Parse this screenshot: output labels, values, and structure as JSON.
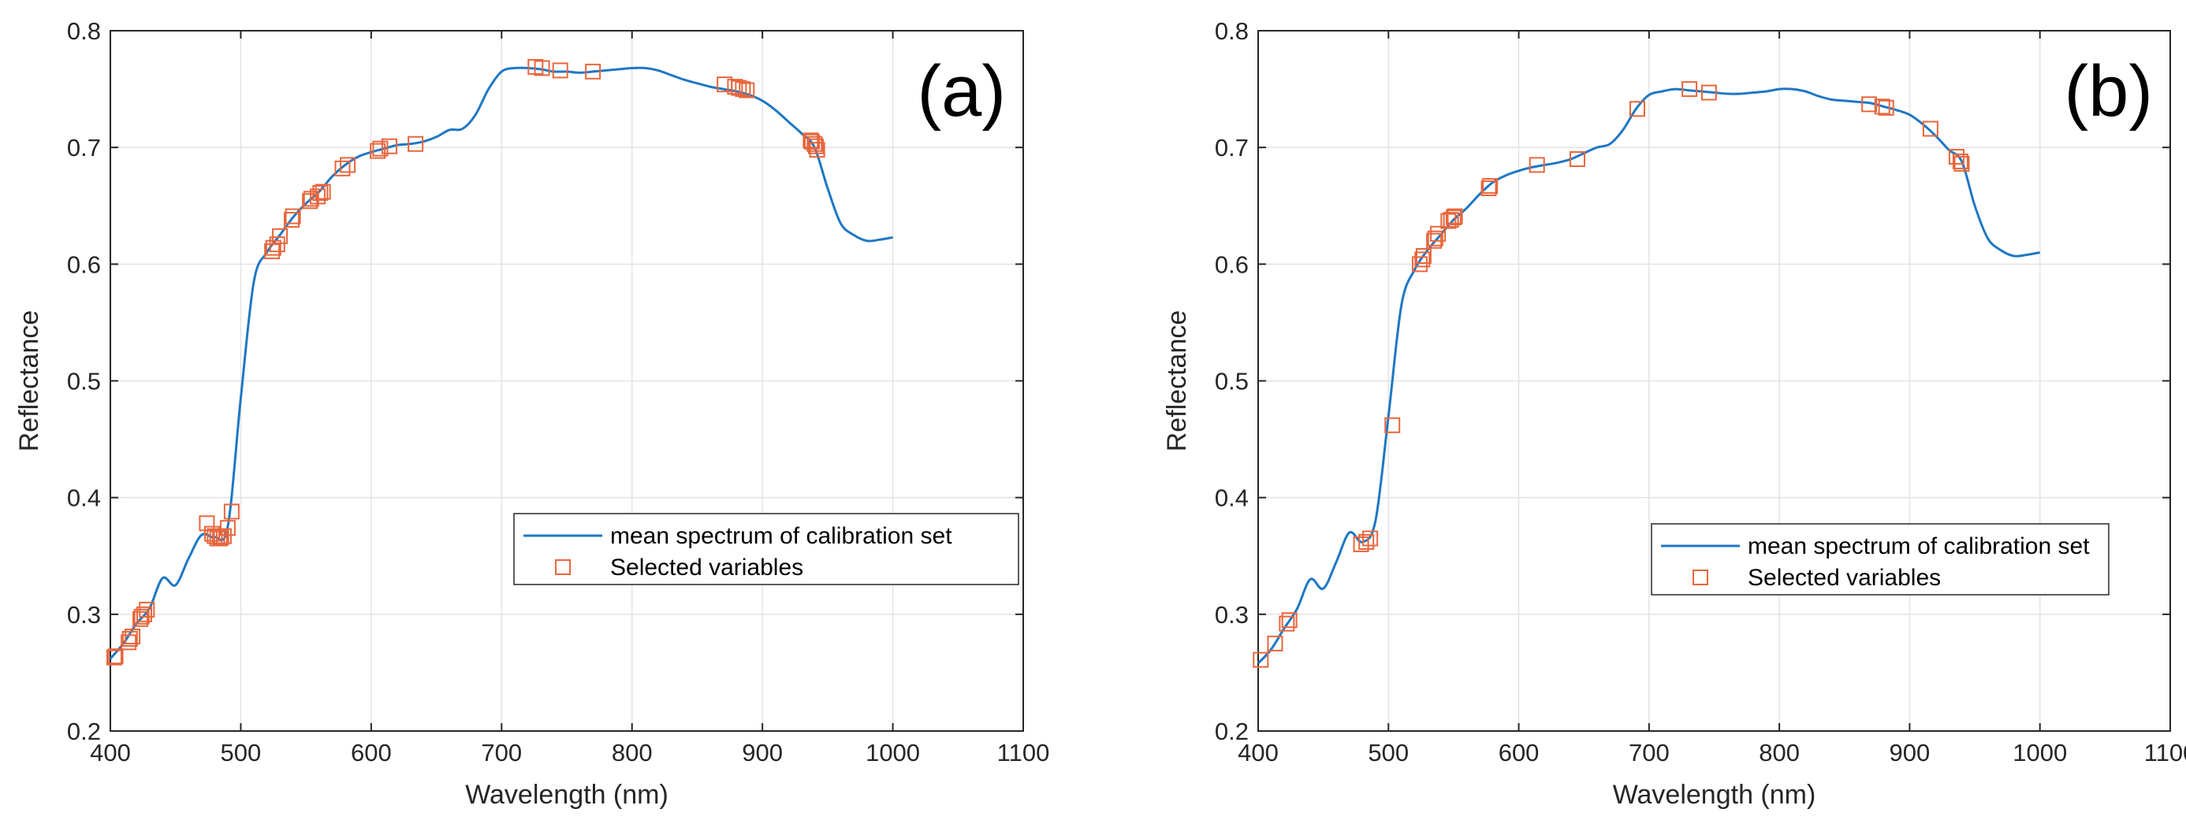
{
  "chart_data": [
    {
      "type": "line",
      "panel_label": "(a)",
      "xlabel": "Wavelength (nm)",
      "ylabel": "Reflectance",
      "xlim": [
        400,
        1100
      ],
      "ylim": [
        0.2,
        0.8
      ],
      "xticks": [
        "400",
        "500",
        "600",
        "700",
        "800",
        "900",
        "1000",
        "1100"
      ],
      "yticks": [
        "0.2",
        "0.3",
        "0.4",
        "0.5",
        "0.6",
        "0.7",
        "0.8"
      ],
      "grid": true,
      "legend_position": "bottom-right",
      "series": [
        {
          "name": "mean spectrum of calibration set",
          "style": "line",
          "color": "#1f77c4",
          "x": [
            400,
            410,
            420,
            430,
            440,
            450,
            460,
            470,
            480,
            490,
            500,
            510,
            520,
            530,
            540,
            550,
            560,
            570,
            580,
            590,
            600,
            610,
            620,
            630,
            640,
            650,
            660,
            670,
            680,
            690,
            700,
            710,
            720,
            730,
            740,
            750,
            760,
            770,
            780,
            790,
            800,
            810,
            820,
            830,
            840,
            850,
            860,
            870,
            880,
            890,
            900,
            910,
            920,
            930,
            940,
            950,
            960,
            970,
            980,
            990,
            1000
          ],
          "y": [
            0.262,
            0.275,
            0.292,
            0.305,
            0.331,
            0.325,
            0.348,
            0.368,
            0.366,
            0.375,
            0.485,
            0.585,
            0.61,
            0.625,
            0.64,
            0.652,
            0.662,
            0.675,
            0.685,
            0.692,
            0.696,
            0.699,
            0.702,
            0.703,
            0.705,
            0.709,
            0.715,
            0.716,
            0.728,
            0.75,
            0.765,
            0.768,
            0.768,
            0.767,
            0.765,
            0.765,
            0.764,
            0.765,
            0.766,
            0.767,
            0.768,
            0.768,
            0.766,
            0.762,
            0.758,
            0.755,
            0.752,
            0.75,
            0.748,
            0.745,
            0.74,
            0.732,
            0.722,
            0.712,
            0.7,
            0.665,
            0.635,
            0.625,
            0.62,
            0.621,
            0.623
          ]
        },
        {
          "name": "Selected variables",
          "style": "marker",
          "color": "#e8663d",
          "x": [
            403,
            404,
            414,
            415,
            417,
            423,
            424,
            426,
            428,
            474,
            478,
            480,
            482,
            484,
            485,
            487,
            490,
            493,
            524,
            525,
            528,
            530,
            539,
            540,
            553,
            554,
            559,
            561,
            563,
            578,
            582,
            605,
            607,
            614,
            634,
            726,
            731,
            745,
            770,
            871,
            879,
            882,
            885,
            888,
            937,
            938,
            940,
            941,
            942
          ],
          "y": [
            0.263,
            0.264,
            0.276,
            0.279,
            0.281,
            0.296,
            0.298,
            0.3,
            0.304,
            0.378,
            0.369,
            0.367,
            0.365,
            0.365,
            0.366,
            0.367,
            0.374,
            0.388,
            0.611,
            0.614,
            0.617,
            0.624,
            0.638,
            0.641,
            0.654,
            0.656,
            0.658,
            0.661,
            0.662,
            0.682,
            0.685,
            0.697,
            0.699,
            0.701,
            0.703,
            0.769,
            0.768,
            0.766,
            0.765,
            0.754,
            0.752,
            0.751,
            0.75,
            0.749,
            0.706,
            0.705,
            0.703,
            0.701,
            0.698
          ]
        }
      ]
    },
    {
      "type": "line",
      "panel_label": "(b)",
      "xlabel": "Wavelength (nm)",
      "ylabel": "Reflectance",
      "xlim": [
        400,
        1100
      ],
      "ylim": [
        0.2,
        0.8
      ],
      "xticks": [
        "400",
        "500",
        "600",
        "700",
        "800",
        "900",
        "1000",
        "1100"
      ],
      "yticks": [
        "0.2",
        "0.3",
        "0.4",
        "0.5",
        "0.6",
        "0.7",
        "0.8"
      ],
      "grid": true,
      "legend_position": "bottom-right",
      "series": [
        {
          "name": "mean spectrum of calibration set",
          "style": "line",
          "color": "#1f77c4",
          "x": [
            400,
            410,
            420,
            430,
            440,
            450,
            460,
            470,
            480,
            490,
            500,
            510,
            520,
            530,
            540,
            550,
            560,
            570,
            580,
            590,
            600,
            610,
            620,
            630,
            640,
            650,
            660,
            670,
            680,
            690,
            700,
            710,
            720,
            730,
            740,
            750,
            760,
            770,
            780,
            790,
            800,
            810,
            820,
            830,
            840,
            850,
            860,
            870,
            880,
            890,
            900,
            910,
            920,
            930,
            940,
            950,
            960,
            970,
            980,
            990,
            1000
          ],
          "y": [
            0.258,
            0.27,
            0.288,
            0.305,
            0.33,
            0.322,
            0.345,
            0.37,
            0.362,
            0.38,
            0.47,
            0.565,
            0.595,
            0.612,
            0.625,
            0.638,
            0.648,
            0.66,
            0.67,
            0.676,
            0.68,
            0.683,
            0.685,
            0.687,
            0.69,
            0.695,
            0.7,
            0.703,
            0.715,
            0.733,
            0.745,
            0.748,
            0.75,
            0.749,
            0.748,
            0.747,
            0.746,
            0.746,
            0.747,
            0.748,
            0.75,
            0.75,
            0.748,
            0.744,
            0.741,
            0.74,
            0.739,
            0.738,
            0.735,
            0.732,
            0.728,
            0.72,
            0.71,
            0.698,
            0.688,
            0.65,
            0.622,
            0.612,
            0.607,
            0.608,
            0.61
          ]
        },
        {
          "name": "Selected variables",
          "style": "marker",
          "color": "#e8663d",
          "x": [
            402,
            413,
            422,
            424,
            479,
            483,
            486,
            503,
            524,
            526,
            527,
            535,
            536,
            538,
            546,
            548,
            550,
            551,
            577,
            578,
            614,
            645,
            691,
            731,
            746,
            869,
            879,
            882,
            916,
            936,
            939,
            940
          ],
          "y": [
            0.261,
            0.275,
            0.292,
            0.295,
            0.36,
            0.362,
            0.365,
            0.462,
            0.6,
            0.604,
            0.607,
            0.62,
            0.622,
            0.626,
            0.637,
            0.638,
            0.64,
            0.641,
            0.665,
            0.667,
            0.685,
            0.69,
            0.733,
            0.75,
            0.747,
            0.737,
            0.735,
            0.734,
            0.716,
            0.692,
            0.688,
            0.686
          ]
        }
      ]
    }
  ]
}
